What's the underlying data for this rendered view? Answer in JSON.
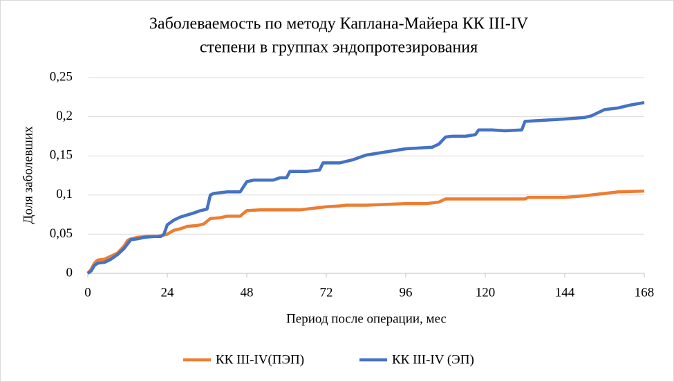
{
  "chart_data": {
    "type": "line",
    "title": [
      "Заболеваемость по методу Каплана-Майера КК III-IV",
      "степени в группах эндопротезирования"
    ],
    "x_label": "Период после операции, мес",
    "y_label": "Доля заболевших",
    "xlim": [
      0,
      168
    ],
    "xticks": [
      0,
      24,
      48,
      72,
      96,
      120,
      144,
      168
    ],
    "ylim": [
      0,
      0.25
    ],
    "yticks": [
      0,
      {
        "value": 0.05,
        "label": "0,05"
      },
      {
        "value": 0.1,
        "label": "0,1"
      },
      {
        "value": 0.15,
        "label": "0,15"
      },
      {
        "value": 0.2,
        "label": "0,2"
      },
      {
        "value": 0.25,
        "label": "0,25"
      }
    ],
    "grid": true,
    "legend": "bottom",
    "series": [
      {
        "name": "КК III-IV(ПЭП)",
        "color": "#ed7d31",
        "x": [
          0,
          1,
          2,
          3,
          5,
          7,
          9,
          11,
          12,
          13,
          15,
          18,
          21,
          24,
          26,
          28,
          30,
          33,
          35,
          37,
          40,
          42,
          46,
          48,
          52,
          60,
          64,
          68,
          72,
          76,
          78,
          84,
          90,
          96,
          102,
          106,
          108,
          114,
          120,
          132,
          133,
          144,
          150,
          156,
          160,
          168
        ],
        "values": [
          0,
          0.005,
          0.013,
          0.017,
          0.018,
          0.022,
          0.026,
          0.035,
          0.042,
          0.044,
          0.046,
          0.047,
          0.047,
          0.05,
          0.055,
          0.057,
          0.06,
          0.061,
          0.063,
          0.07,
          0.071,
          0.073,
          0.073,
          0.08,
          0.081,
          0.081,
          0.081,
          0.083,
          0.085,
          0.086,
          0.087,
          0.087,
          0.088,
          0.089,
          0.089,
          0.091,
          0.095,
          0.095,
          0.095,
          0.095,
          0.097,
          0.097,
          0.099,
          0.102,
          0.104,
          0.105
        ]
      },
      {
        "name": "КК III-IV (ЭП)",
        "color": "#4472c4",
        "x": [
          0,
          1,
          2,
          3,
          5,
          7,
          9,
          11,
          13,
          15,
          17,
          20,
          22,
          23,
          24,
          26,
          28,
          32,
          34,
          36,
          37,
          38,
          42,
          46,
          48,
          50,
          56,
          58,
          60,
          61,
          66,
          70,
          71,
          76,
          80,
          84,
          90,
          96,
          100,
          104,
          106,
          108,
          110,
          114,
          117,
          118,
          122,
          126,
          131,
          132,
          136,
          144,
          150,
          152,
          156,
          160,
          164,
          168
        ],
        "values": [
          0,
          0.003,
          0.01,
          0.013,
          0.014,
          0.018,
          0.024,
          0.032,
          0.043,
          0.044,
          0.046,
          0.047,
          0.047,
          0.05,
          0.062,
          0.068,
          0.072,
          0.077,
          0.08,
          0.082,
          0.1,
          0.102,
          0.104,
          0.104,
          0.117,
          0.119,
          0.119,
          0.122,
          0.122,
          0.13,
          0.13,
          0.132,
          0.141,
          0.141,
          0.145,
          0.151,
          0.155,
          0.159,
          0.16,
          0.161,
          0.165,
          0.174,
          0.175,
          0.175,
          0.177,
          0.183,
          0.183,
          0.182,
          0.183,
          0.194,
          0.195,
          0.197,
          0.199,
          0.201,
          0.209,
          0.211,
          0.215,
          0.218
        ]
      }
    ]
  }
}
